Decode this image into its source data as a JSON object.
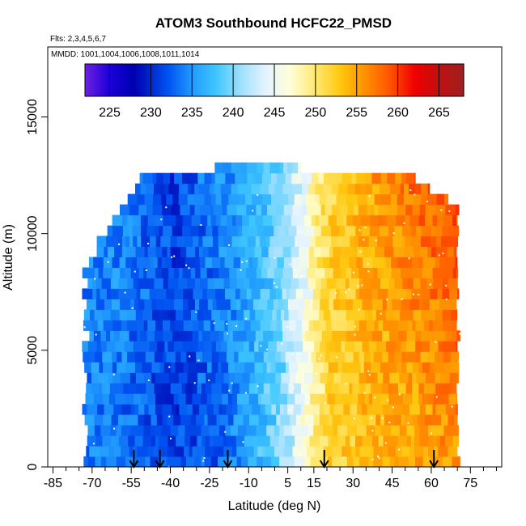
{
  "chart_data": {
    "type": "heatmap",
    "title": "ATOM3 Southbound HCFC22_PMSD",
    "subtitle_flights": "Flts: 2,3,4,5,6,7",
    "subtitle_dates": "MMDD: 1001,1004,1006,1008,1011,1014",
    "xlabel": "Latitude (deg N)",
    "ylabel": "Altitude (m)",
    "xlim": [
      -87,
      87
    ],
    "ylim": [
      0,
      18000
    ],
    "x_tick_labels": [
      "-85",
      "-70",
      "-55",
      "-40",
      "-25",
      "-10",
      "5",
      "15",
      "30",
      "45",
      "60",
      "75"
    ],
    "x_tick_values": [
      -85,
      -70,
      -55,
      -40,
      -25,
      -10,
      5,
      15,
      30,
      45,
      60,
      75
    ],
    "y_tick_labels": [
      "0",
      "5000",
      "10000",
      "15000"
    ],
    "y_tick_values": [
      0,
      5000,
      10000,
      15000
    ],
    "colorbar": {
      "range": [
        222,
        268
      ],
      "tick_labels": [
        "225",
        "230",
        "235",
        "240",
        "245",
        "250",
        "255",
        "260",
        "265"
      ],
      "tick_values": [
        225,
        230,
        235,
        240,
        245,
        250,
        255,
        260,
        265
      ]
    },
    "flight_marker_latitudes": [
      -54,
      -44,
      -18,
      19,
      61
    ],
    "field_profile": {
      "latitudes": [
        -72,
        -60,
        -50,
        -40,
        -30,
        -20,
        -10,
        0,
        5,
        10,
        15,
        20,
        30,
        45,
        60,
        70
      ],
      "values_near_surface": [
        234,
        233,
        232,
        231,
        232,
        233,
        236,
        240,
        243,
        246,
        250,
        252,
        253,
        254,
        255,
        256
      ],
      "values_upper": [
        234,
        235,
        233,
        231,
        233,
        235,
        237,
        239,
        242,
        245,
        249,
        252,
        254,
        257,
        259,
        260
      ]
    },
    "data_extent": {
      "lat_min": -74,
      "lat_max": 71,
      "alt_min": 0,
      "alt_max": 12900
    }
  }
}
